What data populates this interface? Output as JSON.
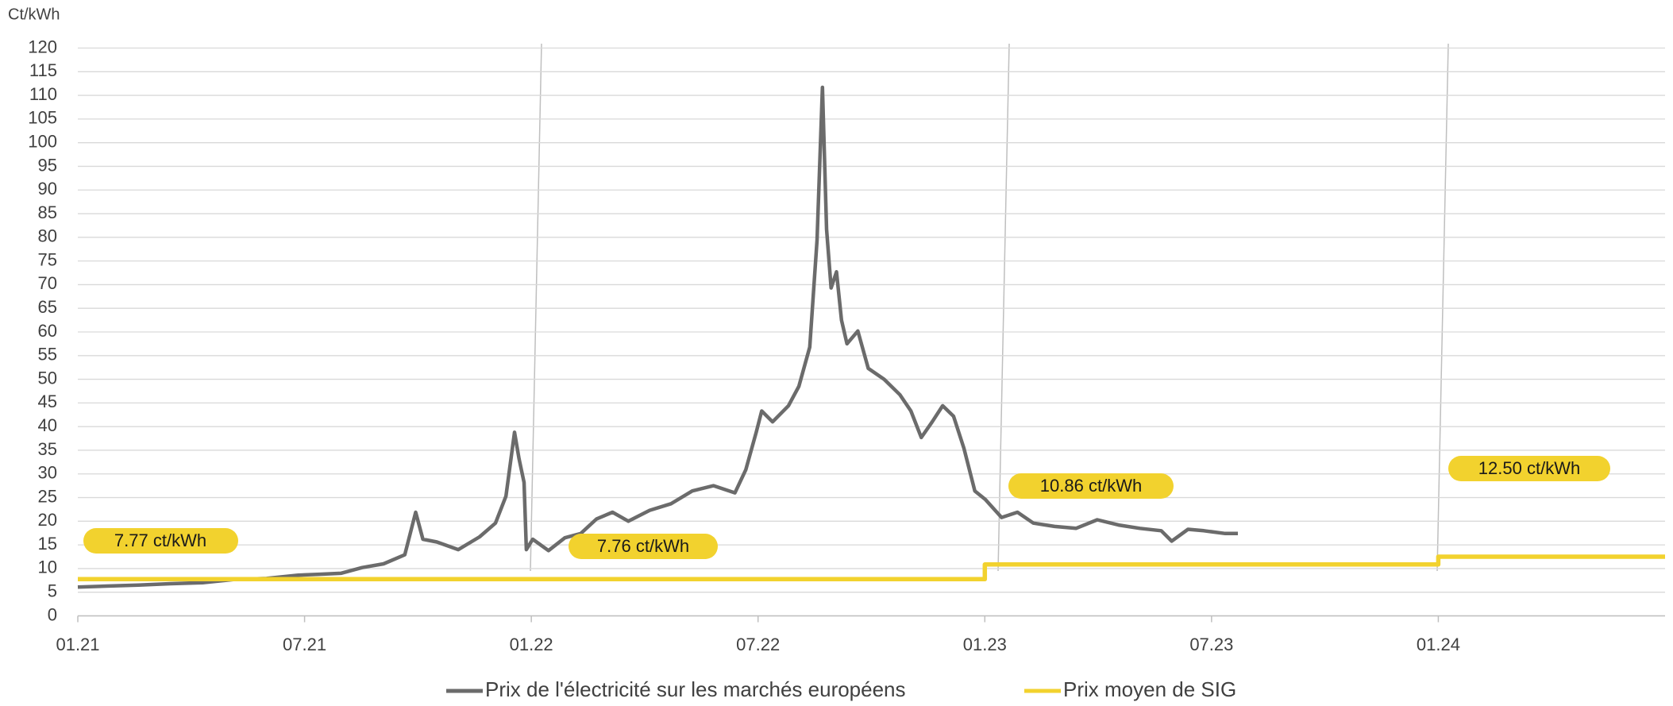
{
  "chart_data": {
    "type": "line",
    "y_axis_label": "Ct/kWh",
    "xlim": [
      2021,
      2024.5
    ],
    "xticks": [
      {
        "value": 2021,
        "label": "01.21"
      },
      {
        "value": 2021.5,
        "label": "07.21"
      },
      {
        "value": 2022,
        "label": "01.22"
      },
      {
        "value": 2022.5,
        "label": "07.22"
      },
      {
        "value": 2023,
        "label": "01.23"
      },
      {
        "value": 2023.5,
        "label": "07.23"
      },
      {
        "value": 2024,
        "label": "01.24"
      }
    ],
    "ylim": [
      0,
      120
    ],
    "yticks": [
      0,
      5,
      10,
      15,
      20,
      25,
      30,
      35,
      40,
      45,
      50,
      55,
      60,
      65,
      70,
      75,
      80,
      85,
      90,
      95,
      100,
      105,
      110,
      115,
      120
    ],
    "grid": true,
    "legend": "bottom",
    "series": [
      {
        "name": "Prix de l'électricité sur les marchés européens",
        "color": "#6b6b6b",
        "x": [
          2021,
          2021.063,
          2021.134,
          2021.204,
          2021.275,
          2021.345,
          2021.416,
          2021.486,
          2021.533,
          2021.58,
          2021.627,
          2021.674,
          2021.721,
          2021.745,
          2021.761,
          2021.792,
          2021.839,
          2021.886,
          2021.921,
          2021.944,
          2021.963,
          2021.973,
          2021.984,
          2021.989,
          2022.003,
          2022.038,
          2022.074,
          2022.109,
          2022.144,
          2022.179,
          2022.214,
          2022.261,
          2022.308,
          2022.355,
          2022.402,
          2022.449,
          2022.473,
          2022.496,
          2022.508,
          2022.532,
          2022.567,
          2022.59,
          2022.614,
          2022.63,
          2022.642,
          2022.651,
          2022.661,
          2022.673,
          2022.684,
          2022.696,
          2022.72,
          2022.743,
          2022.778,
          2022.813,
          2022.837,
          2022.86,
          2022.884,
          2022.907,
          2022.931,
          2022.954,
          2022.978,
          2023.001,
          2023.037,
          2023.072,
          2023.107,
          2023.154,
          2023.201,
          2023.248,
          2023.295,
          2023.342,
          2023.389,
          2023.412,
          2023.448,
          2023.483,
          2023.53,
          2023.558
        ],
        "values": [
          6.1,
          6.3,
          6.5,
          6.8,
          7,
          7.7,
          7.9,
          8.6,
          8.8,
          9,
          10.2,
          11,
          12.9,
          21.9,
          16.2,
          15.6,
          14,
          16.7,
          19.6,
          25.3,
          38.8,
          33.2,
          28.2,
          14,
          16.2,
          13.8,
          16.5,
          17.4,
          20.5,
          21.9,
          20,
          22.3,
          23.7,
          26.4,
          27.5,
          26,
          30.9,
          38.8,
          43.3,
          41,
          44.4,
          48.5,
          56.8,
          79.4,
          111.7,
          81.7,
          69.3,
          72.7,
          62.5,
          57.5,
          60.2,
          52.3,
          50,
          46.7,
          43.3,
          37.7,
          41,
          44.4,
          42.2,
          35.4,
          26.4,
          24.6,
          20.8,
          21.9,
          19.6,
          18.9,
          18.5,
          20.3,
          19.2,
          18.5,
          18,
          15.8,
          18.3,
          18,
          17.4,
          17.4
        ]
      },
      {
        "name": "Prix moyen de SIG",
        "color": "#f2d22e",
        "x": [
          2021,
          2022,
          2022,
          2023,
          2023,
          2024,
          2024,
          2024.5
        ],
        "values": [
          7.77,
          7.77,
          7.76,
          7.76,
          10.86,
          10.86,
          12.5,
          12.5
        ]
      }
    ],
    "annotations": [
      "7.77 ct/kWh",
      "7.76 ct/kWh",
      "10.86 ct/kWh",
      "12.50 ct/kWh"
    ]
  }
}
